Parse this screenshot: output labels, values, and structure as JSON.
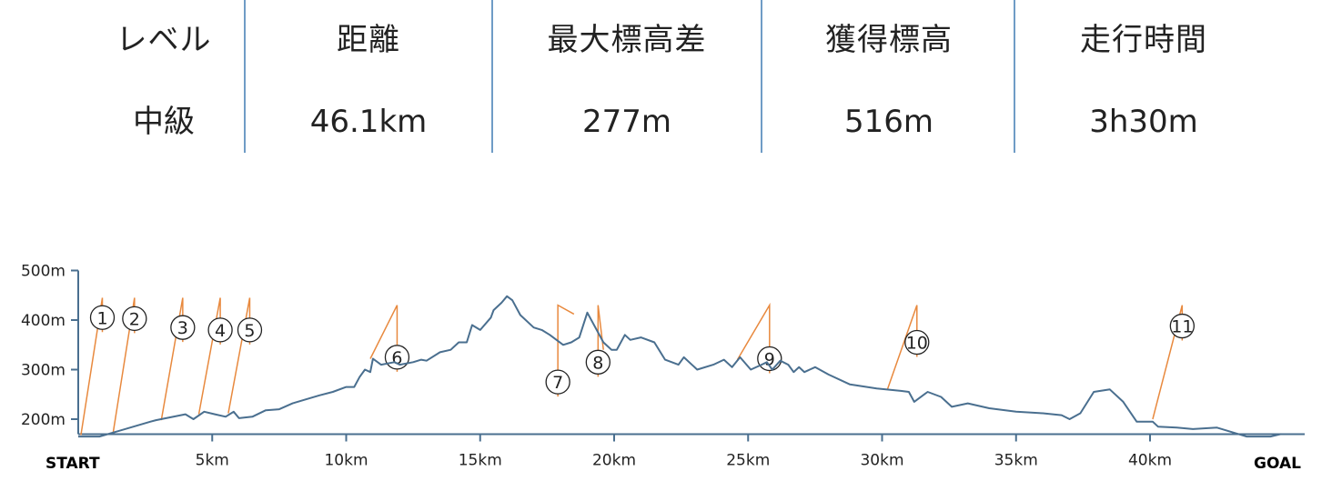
{
  "summary": {
    "level_label": "レベル",
    "level_value": "中級",
    "distance_label": "距離",
    "distance_value": "46.1km",
    "max_diff_label": "最大標高差",
    "max_diff_value": "277m",
    "gain_label": "獲得標高",
    "gain_value": "516m",
    "time_label": "走行時間",
    "time_value": "3h30m"
  },
  "chart_data": {
    "type": "line",
    "xlim": [
      0,
      45.5
    ],
    "ylim": [
      145,
      500
    ],
    "x_ticks": [
      5,
      10,
      15,
      20,
      25,
      30,
      35,
      40
    ],
    "x_tick_labels": [
      "5km",
      "10km",
      "15km",
      "20km",
      "25km",
      "30km",
      "35km",
      "40km"
    ],
    "y_ticks": [
      200,
      300,
      400,
      500
    ],
    "y_tick_labels": [
      "200m",
      "300m",
      "400m",
      "500m"
    ],
    "start_label": "START",
    "goal_label": "GOAL",
    "line_color": "#4a6f8f",
    "marker_color": "#e8893e",
    "series": [
      {
        "x": [
          0,
          0.8,
          2.7,
          2.9,
          4.0,
          4.3,
          4.7,
          5.1,
          5.5,
          5.8,
          6.0,
          6.5,
          7.0,
          7.5,
          8.0,
          8.5,
          9.0,
          9.5,
          10.0,
          10.3,
          10.5,
          10.7,
          10.9,
          11.0,
          11.3,
          11.8,
          12.0,
          12.5,
          12.8,
          13.0,
          13.5,
          13.9,
          14.2,
          14.5,
          14.7,
          15.0,
          15.4,
          15.5,
          15.8,
          16.0,
          16.2,
          16.5,
          17.0,
          17.3,
          17.6,
          18.1,
          18.4,
          18.7,
          19.0,
          19.6,
          19.9,
          20.1,
          20.4,
          20.6,
          21.0,
          21.5,
          21.9,
          22.4,
          22.6,
          23.1,
          23.7,
          24.1,
          24.4,
          24.7,
          25.1,
          25.5,
          25.7,
          25.9,
          26.2,
          26.5,
          26.7,
          26.9,
          27.1,
          27.5,
          28.0,
          28.8,
          29.8,
          30.7,
          31.0,
          31.2,
          31.7,
          32.2,
          32.6,
          33.2,
          34.0,
          35.0,
          36.0,
          36.7,
          37.0,
          37.4,
          37.9,
          38.5,
          39.0,
          39.5,
          40.1,
          40.3,
          41.0,
          41.6,
          42.5,
          43.6,
          44.5,
          44.9
        ],
        "values": [
          165,
          165,
          195,
          198,
          210,
          200,
          215,
          210,
          205,
          215,
          202,
          205,
          218,
          220,
          232,
          240,
          248,
          255,
          265,
          265,
          285,
          300,
          295,
          322,
          310,
          315,
          310,
          315,
          320,
          318,
          335,
          340,
          355,
          355,
          390,
          380,
          405,
          420,
          435,
          448,
          440,
          410,
          385,
          380,
          370,
          350,
          355,
          365,
          415,
          355,
          340,
          340,
          370,
          360,
          365,
          355,
          320,
          310,
          325,
          300,
          310,
          320,
          305,
          325,
          300,
          310,
          315,
          300,
          318,
          310,
          295,
          305,
          295,
          305,
          290,
          270,
          262,
          257,
          255,
          235,
          255,
          245,
          225,
          232,
          222,
          215,
          212,
          208,
          200,
          212,
          255,
          260,
          235,
          195,
          195,
          185,
          183,
          180,
          183,
          165,
          165,
          170
        ]
      }
    ],
    "markers": [
      {
        "label": "①",
        "point_x": 0.1,
        "point_y": 168,
        "top_y": 445,
        "bubble_x": 0.9,
        "bubble_y": 405
      },
      {
        "label": "②",
        "point_x": 1.3,
        "point_y": 172,
        "top_y": 445,
        "bubble_x": 2.1,
        "bubble_y": 403
      },
      {
        "label": "③",
        "point_x": 3.1,
        "point_y": 198,
        "top_y": 445,
        "bubble_x": 3.9,
        "bubble_y": 385
      },
      {
        "label": "④",
        "point_x": 4.5,
        "point_y": 210,
        "top_y": 445,
        "bubble_x": 5.3,
        "bubble_y": 380
      },
      {
        "label": "⑤",
        "point_x": 5.6,
        "point_y": 212,
        "top_y": 445,
        "bubble_x": 6.4,
        "bubble_y": 380
      },
      {
        "label": "⑥",
        "point_x": 10.9,
        "point_y": 322,
        "top_y": 430,
        "bubble_x": 11.9,
        "bubble_y": 325
      },
      {
        "label": "⑦",
        "point_x": 18.5,
        "point_y": 412,
        "top_y": 430,
        "bubble_x": 17.9,
        "bubble_y": 275
      },
      {
        "label": "⑧",
        "point_x": 19.6,
        "point_y": 340,
        "top_y": 430,
        "bubble_x": 19.4,
        "bubble_y": 315
      },
      {
        "label": "⑨",
        "point_x": 24.6,
        "point_y": 320,
        "top_y": 430,
        "bubble_x": 25.8,
        "bubble_y": 322
      },
      {
        "label": "⑩",
        "point_x": 30.2,
        "point_y": 260,
        "top_y": 430,
        "bubble_x": 31.3,
        "bubble_y": 355
      },
      {
        "label": "⑪",
        "point_x": 40.1,
        "point_y": 200,
        "top_y": 430,
        "bubble_x": 41.2,
        "bubble_y": 388
      }
    ]
  }
}
